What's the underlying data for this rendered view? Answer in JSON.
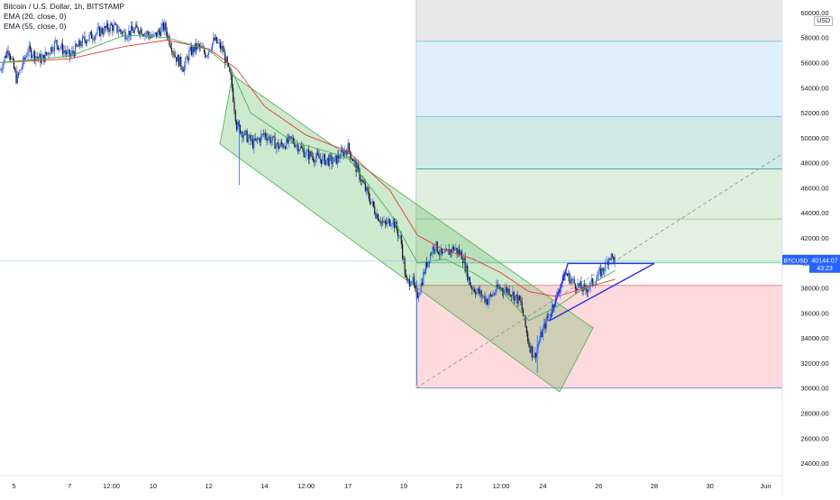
{
  "legend": {
    "symbol_title": "Bitcoin / U.S. Dollar, 1h, BITSTAMP",
    "ema20": "EMA (20, close, 0)",
    "ema55": "EMA (55, close, 0)"
  },
  "price_scale": {
    "currency": "USD",
    "ticks": [
      "58000.00",
      "56000.00",
      "54000.00",
      "52000.00",
      "50000.00",
      "48000.00",
      "46000.00",
      "44000.00",
      "42000.00",
      "40000.00",
      "38000.00",
      "36000.00",
      "34000.00",
      "32000.00",
      "30000.00",
      "28000.00",
      "26000.00",
      "24000.00"
    ],
    "top_partial": "60000.00"
  },
  "time_scale": {
    "ticks": [
      {
        "label": "5",
        "day": 5
      },
      {
        "label": "7",
        "day": 7
      },
      {
        "label": "12:00",
        "day": 8.5
      },
      {
        "label": "10",
        "day": 10
      },
      {
        "label": "12",
        "day": 12
      },
      {
        "label": "14",
        "day": 14
      },
      {
        "label": "12:00",
        "day": 15.5
      },
      {
        "label": "17",
        "day": 17
      },
      {
        "label": "19",
        "day": 19
      },
      {
        "label": "21",
        "day": 21
      },
      {
        "label": "12:00",
        "day": 22.5
      },
      {
        "label": "24",
        "day": 24
      },
      {
        "label": "26",
        "day": 26
      },
      {
        "label": "28",
        "day": 28
      },
      {
        "label": "30",
        "day": 30
      },
      {
        "label": "Jun",
        "day": 32
      }
    ]
  },
  "last_price": {
    "symbol": "BTCUSD",
    "price": "40144.07",
    "countdown": "43:23",
    "value": 40144
  },
  "colors": {
    "up": "#2962ff",
    "down": "#131722",
    "ema20": "#4caf50",
    "ema55": "#e53935",
    "channel_fill": "rgba(76,175,80,0.28)",
    "channel_stroke": "#4caf50",
    "triangle": "#2a2eec",
    "fib_lines": "#4f7bd9"
  },
  "chart_data": {
    "type": "candlestick",
    "x_unit": "day of May 2021",
    "y_unit": "USD",
    "xlim": [
      4.5,
      32.6
    ],
    "ylim": [
      23000,
      61000
    ],
    "price_path": [
      [
        4.5,
        55400
      ],
      [
        4.8,
        57200
      ],
      [
        5.1,
        54600
      ],
      [
        5.5,
        57000
      ],
      [
        6.0,
        56200
      ],
      [
        6.5,
        57600
      ],
      [
        7.0,
        56500
      ],
      [
        7.5,
        57800
      ],
      [
        8.0,
        58400
      ],
      [
        8.5,
        58900
      ],
      [
        9.0,
        58300
      ],
      [
        9.5,
        58700
      ],
      [
        10.0,
        58000
      ],
      [
        10.4,
        58900
      ],
      [
        10.8,
        56500
      ],
      [
        11.1,
        55600
      ],
      [
        11.3,
        56800
      ],
      [
        11.6,
        57300
      ],
      [
        11.9,
        56700
      ],
      [
        12.2,
        57800
      ],
      [
        12.5,
        57000
      ],
      [
        12.8,
        54600
      ],
      [
        13.0,
        51000
      ],
      [
        13.3,
        50200
      ],
      [
        13.6,
        49500
      ],
      [
        14.0,
        50300
      ],
      [
        14.5,
        49300
      ],
      [
        15.0,
        49800
      ],
      [
        15.5,
        48700
      ],
      [
        16.0,
        48300
      ],
      [
        16.5,
        48100
      ],
      [
        17.0,
        49200
      ],
      [
        17.5,
        46500
      ],
      [
        18.0,
        44000
      ],
      [
        18.3,
        43000
      ],
      [
        18.6,
        43500
      ],
      [
        18.9,
        41800
      ],
      [
        19.1,
        38300
      ],
      [
        19.3,
        38800
      ],
      [
        19.45,
        37200
      ],
      [
        19.6,
        38100
      ],
      [
        19.8,
        39800
      ],
      [
        20.1,
        41500
      ],
      [
        20.4,
        40500
      ],
      [
        20.8,
        41200
      ],
      [
        21.1,
        40600
      ],
      [
        21.4,
        38200
      ],
      [
        21.7,
        37600
      ],
      [
        22.0,
        37000
      ],
      [
        22.4,
        38000
      ],
      [
        22.8,
        37800
      ],
      [
        23.2,
        36800
      ],
      [
        23.5,
        33500
      ],
      [
        23.7,
        32500
      ],
      [
        23.9,
        34000
      ],
      [
        24.2,
        35800
      ],
      [
        24.5,
        37400
      ],
      [
        24.8,
        39200
      ],
      [
        25.1,
        38400
      ],
      [
        25.5,
        37800
      ],
      [
        25.9,
        38700
      ],
      [
        26.2,
        39600
      ],
      [
        26.4,
        40600
      ],
      [
        26.6,
        40144
      ]
    ],
    "wicks": [
      {
        "day": 13.1,
        "low": 46200,
        "high": 51400
      },
      {
        "day": 19.47,
        "low": 30200,
        "high": 38600
      },
      {
        "day": 23.8,
        "low": 31200,
        "high": 34200
      }
    ],
    "ema20_points": [
      [
        4.5,
        56000
      ],
      [
        7.0,
        56500
      ],
      [
        9.0,
        58200
      ],
      [
        10.5,
        58000
      ],
      [
        12.0,
        57000
      ],
      [
        12.8,
        55500
      ],
      [
        13.5,
        52000
      ],
      [
        15.0,
        49700
      ],
      [
        17.0,
        48400
      ],
      [
        18.5,
        44000
      ],
      [
        19.5,
        40000
      ],
      [
        20.5,
        40300
      ],
      [
        21.5,
        39200
      ],
      [
        22.5,
        37800
      ],
      [
        23.5,
        35400
      ],
      [
        24.5,
        36500
      ],
      [
        25.5,
        38000
      ],
      [
        26.6,
        39400
      ]
    ],
    "ema55_points": [
      [
        4.5,
        56000
      ],
      [
        7.0,
        56300
      ],
      [
        9.0,
        57300
      ],
      [
        10.5,
        57800
      ],
      [
        12.0,
        57100
      ],
      [
        13.0,
        55500
      ],
      [
        14.0,
        52500
      ],
      [
        15.5,
        50200
      ],
      [
        17.0,
        48900
      ],
      [
        18.5,
        45800
      ],
      [
        19.5,
        42200
      ],
      [
        20.5,
        41000
      ],
      [
        21.5,
        40300
      ],
      [
        22.5,
        39200
      ],
      [
        23.5,
        37700
      ],
      [
        24.5,
        37300
      ],
      [
        25.5,
        38000
      ],
      [
        26.6,
        38700
      ]
    ],
    "fib_levels": [
      30000,
      38200,
      40000,
      43500,
      47500,
      51700,
      57700,
      61000
    ],
    "fib_start_day": 19.45,
    "fib_end_day": 32.6,
    "fib_zone_colors": [
      "#ffcdd2",
      "#ffffff",
      "#dcedda",
      "#dcedda",
      "#cce8e2",
      "#dbeefc",
      "#e6e6e6"
    ],
    "fib_zone_opacity": [
      0.75,
      0.0,
      0.8,
      0.9,
      0.9,
      0.9,
      0.9
    ],
    "channel_polygon": [
      [
        12.85,
        55000
      ],
      [
        12.4,
        49500
      ],
      [
        24.6,
        29700
      ],
      [
        25.8,
        34800
      ]
    ],
    "triangle": [
      [
        24.25,
        35400
      ],
      [
        24.9,
        39950
      ],
      [
        28.0,
        39950
      ]
    ],
    "trend_dashed": [
      [
        19.45,
        30000
      ],
      [
        32.6,
        48700
      ]
    ],
    "last_price_line": 40144
  }
}
